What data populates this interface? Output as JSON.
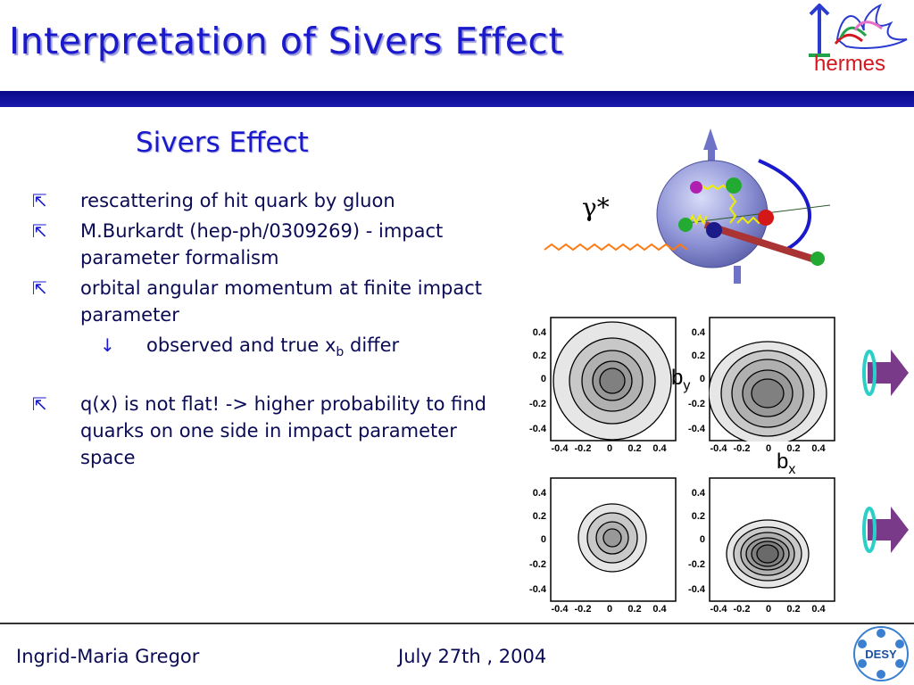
{
  "title": "Interpretation of Sivers Effect",
  "logo": {
    "text": "hermes"
  },
  "subtitle": "Sivers Effect",
  "bullets": {
    "b1": "rescattering of hit quark by gluon",
    "b2": "M.Burkardt (hep-ph/0309269) - impact parameter formalism",
    "b3": "orbital angular momentum at finite impact parameter",
    "sub1_pre": "observed and true x",
    "sub1_sub": "b",
    "sub1_post": " differ",
    "b4": "q(x) is not flat!  -> higher probability to find quarks on one side in impact parameter space"
  },
  "diagram": {
    "gamma_label": "γ*"
  },
  "panels": {
    "y_ticks": [
      "0.4",
      "0.2",
      "0",
      "-0.2",
      "-0.4"
    ],
    "x_ticks": [
      "-0.4",
      "-0.2",
      "0",
      "0.2",
      "0.4"
    ]
  },
  "axis_labels": {
    "by_main": "b",
    "by_sub": "y",
    "bx_main": "b",
    "bx_sub": "x"
  },
  "footer": {
    "author": "Ingrid-Maria Gregor",
    "date": "July 27th , 2004",
    "desy": "DESY"
  },
  "chart_data": []
}
